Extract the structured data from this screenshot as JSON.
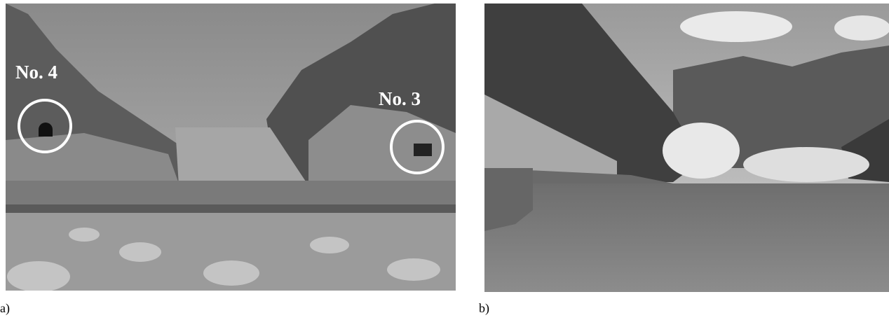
{
  "panels": [
    {
      "label": "a)",
      "annotations": [
        "No. 4",
        "No. 3"
      ]
    },
    {
      "label": "b)"
    }
  ]
}
